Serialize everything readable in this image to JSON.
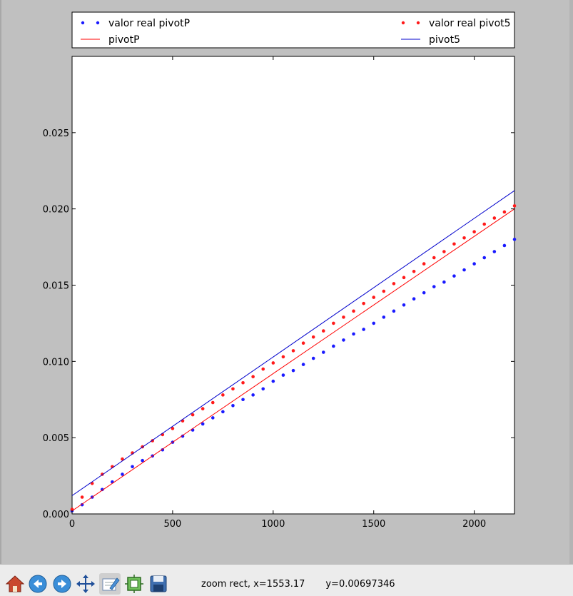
{
  "chart_data": {
    "type": "scatter",
    "title": "",
    "xlabel": "",
    "ylabel": "",
    "xlim": [
      0,
      2200
    ],
    "ylim": [
      0,
      0.03
    ],
    "x_ticks": [
      0,
      500,
      1000,
      1500,
      2000
    ],
    "x_tick_labels": [
      "0",
      "500",
      "1000",
      "1500",
      "2000"
    ],
    "y_ticks": [
      0,
      0.005,
      0.01,
      0.015,
      0.02,
      0.025
    ],
    "y_tick_labels": [
      "0.000",
      "0.005",
      "0.010",
      "0.015",
      "0.020",
      "0.025"
    ],
    "grid": false,
    "legend_placement": "above-plot",
    "series": [
      {
        "name": "valor real pivotP",
        "kind": "scatter",
        "color": "#1a1aff",
        "x": [
          0,
          50,
          100,
          150,
          200,
          250,
          300,
          350,
          400,
          450,
          500,
          550,
          600,
          650,
          700,
          750,
          800,
          850,
          900,
          950,
          1000,
          1050,
          1100,
          1150,
          1200,
          1250,
          1300,
          1350,
          1400,
          1450,
          1500,
          1550,
          1600,
          1650,
          1700,
          1750,
          1800,
          1850,
          1900,
          1950,
          2000,
          2050,
          2100,
          2150,
          2200
        ],
        "y": [
          0.0002,
          0.0006,
          0.0011,
          0.0016,
          0.0021,
          0.0026,
          0.0031,
          0.0035,
          0.0038,
          0.0042,
          0.0047,
          0.0051,
          0.0055,
          0.0059,
          0.0063,
          0.0067,
          0.0071,
          0.0075,
          0.0078,
          0.0082,
          0.0087,
          0.0091,
          0.0094,
          0.0098,
          0.0102,
          0.0106,
          0.011,
          0.0114,
          0.0118,
          0.0121,
          0.0125,
          0.0129,
          0.0133,
          0.0137,
          0.0141,
          0.0145,
          0.0149,
          0.0152,
          0.0156,
          0.016,
          0.0164,
          0.0168,
          0.0172,
          0.0176,
          0.018
        ]
      },
      {
        "name": "valor real pivot5",
        "kind": "scatter",
        "color": "#ff1a1a",
        "x": [
          0,
          50,
          100,
          150,
          200,
          250,
          300,
          350,
          400,
          450,
          500,
          550,
          600,
          650,
          700,
          750,
          800,
          850,
          900,
          950,
          1000,
          1050,
          1100,
          1150,
          1200,
          1250,
          1300,
          1350,
          1400,
          1450,
          1500,
          1550,
          1600,
          1650,
          1700,
          1750,
          1800,
          1850,
          1900,
          1950,
          2000,
          2050,
          2100,
          2150,
          2200
        ],
        "y": [
          0.0003,
          0.0011,
          0.002,
          0.0026,
          0.0031,
          0.0036,
          0.004,
          0.0044,
          0.0048,
          0.0052,
          0.0056,
          0.0061,
          0.0065,
          0.0069,
          0.0073,
          0.0078,
          0.0082,
          0.0086,
          0.009,
          0.0095,
          0.0099,
          0.0103,
          0.0107,
          0.0112,
          0.0116,
          0.012,
          0.0125,
          0.0129,
          0.0133,
          0.0138,
          0.0142,
          0.0146,
          0.0151,
          0.0155,
          0.0159,
          0.0164,
          0.0168,
          0.0172,
          0.0177,
          0.0181,
          0.0185,
          0.019,
          0.0194,
          0.0198,
          0.0202
        ]
      },
      {
        "name": "pivotP",
        "kind": "line",
        "color": "#ff0000",
        "x": [
          0,
          2200
        ],
        "y": [
          0.0002,
          0.02
        ]
      },
      {
        "name": "pivot5",
        "kind": "line",
        "color": "#0000cc",
        "x": [
          0,
          2200
        ],
        "y": [
          0.0012,
          0.0212
        ]
      }
    ],
    "legend": {
      "entries": [
        {
          "label": "valor real pivotP",
          "style": "dots",
          "color": "#1a1aff"
        },
        {
          "label": "valor real pivot5",
          "style": "dots",
          "color": "#ff1a1a"
        },
        {
          "label": "pivotP",
          "style": "line",
          "color": "#ff0000"
        },
        {
          "label": "pivot5",
          "style": "line",
          "color": "#0000cc"
        }
      ]
    }
  },
  "toolbar": {
    "buttons": [
      {
        "icon": "home-icon"
      },
      {
        "icon": "back-icon"
      },
      {
        "icon": "forward-icon"
      },
      {
        "icon": "pan-icon"
      },
      {
        "icon": "zoom-icon"
      },
      {
        "icon": "subplots-icon"
      },
      {
        "icon": "save-icon"
      }
    ],
    "status": "zoom rect, x=1553.17       y=0.00697346"
  }
}
